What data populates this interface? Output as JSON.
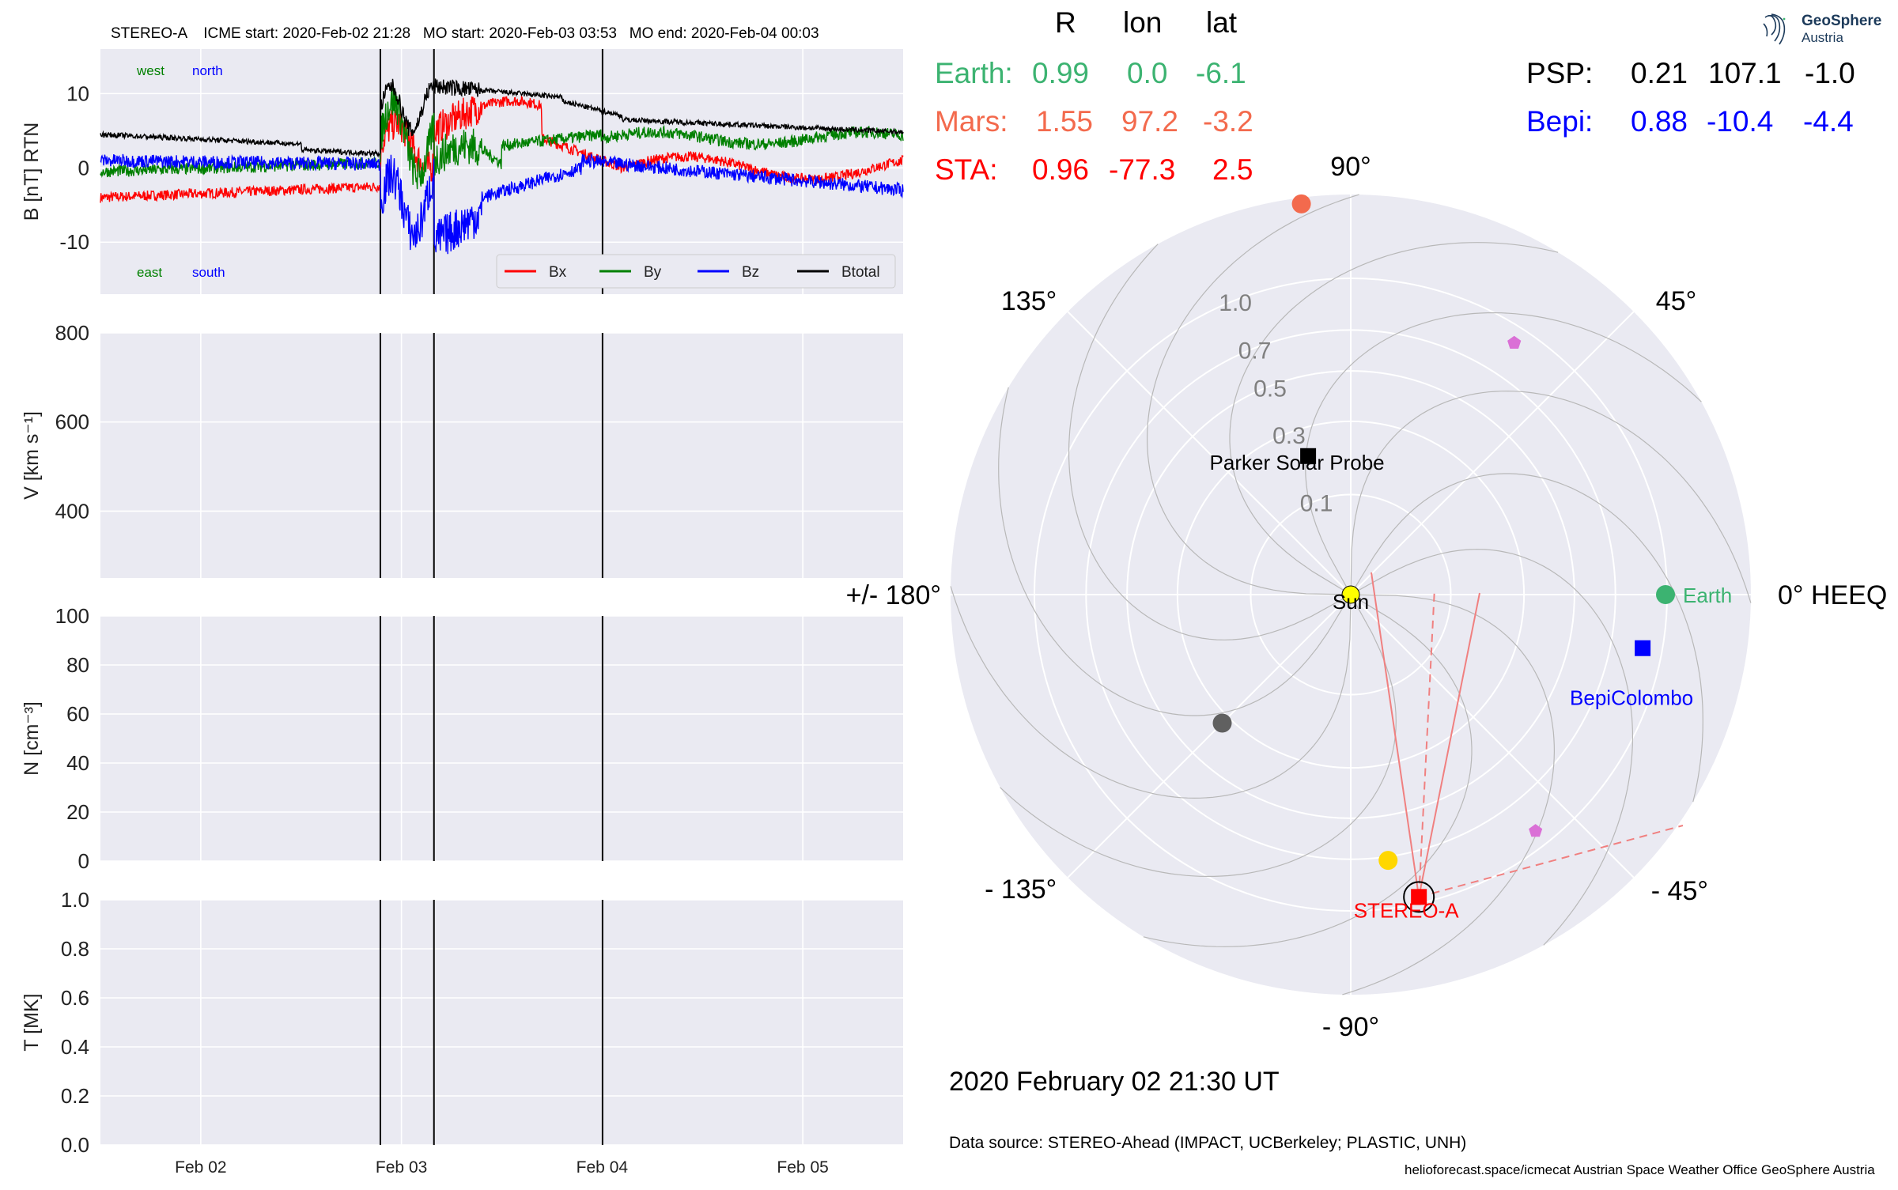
{
  "header": {
    "event_line": "STEREO-A    ICME start: 2020-Feb-02 21:28   MO start: 2020-Feb-03 03:53   MO end: 2020-Feb-04 00:03"
  },
  "positions": {
    "col_headers": [
      "R",
      "lon",
      "lat"
    ],
    "rows_left": [
      {
        "label": "Earth:",
        "R": "0.99",
        "lon": "0.0",
        "lat": "-6.1",
        "color": "#3cb371"
      },
      {
        "label": "Mars:",
        "R": "1.55",
        "lon": "97.2",
        "lat": "-3.2",
        "color": "#f36a4d"
      },
      {
        "label": "STA:",
        "R": "0.96",
        "lon": "-77.3",
        "lat": "2.5",
        "color": "#ff0000"
      }
    ],
    "rows_right": [
      {
        "label": "PSP:",
        "R": "0.21",
        "lon": "107.1",
        "lat": "-1.0",
        "color": "#000000"
      },
      {
        "label": "Bepi:",
        "R": "0.88",
        "lon": "-10.4",
        "lat": "-4.4",
        "color": "#0000ff"
      }
    ]
  },
  "chart_data": [
    {
      "type": "line",
      "panel": "magnetic field",
      "ylabel": "B [nT] RTN",
      "ylim": [
        -17,
        16
      ],
      "yticks": [
        -10,
        0,
        10
      ],
      "xlim_days": [
        "2020-02-01 12:00",
        "2020-02-05 12:00"
      ],
      "xticks": [
        "Feb 02",
        "Feb 03",
        "Feb 04",
        "Feb 05"
      ],
      "annotations": {
        "top_left": [
          "west",
          "north"
        ],
        "bottom_left": [
          "east",
          "south"
        ]
      },
      "legend": {
        "position": "bottom-right",
        "entries": [
          "Bx",
          "By",
          "Bz",
          "Btotal"
        ]
      },
      "series": [
        {
          "name": "Bx",
          "color": "#ff0000"
        },
        {
          "name": "By",
          "color": "#008000"
        },
        {
          "name": "Bz",
          "color": "#0000ff"
        },
        {
          "name": "Btotal",
          "color": "#000000"
        }
      ],
      "vertical_lines": [
        "2020-02-02 21:28",
        "2020-02-03 03:53",
        "2020-02-04 00:03"
      ],
      "grid": true
    },
    {
      "type": "line",
      "panel": "speed",
      "ylabel": "V [km s⁻¹]",
      "ylim": [
        250,
        800
      ],
      "yticks": [
        400,
        600,
        800
      ],
      "series": [],
      "grid": true
    },
    {
      "type": "line",
      "panel": "density",
      "ylabel": "N [cm⁻³]",
      "ylim": [
        0,
        100
      ],
      "yticks": [
        0,
        20,
        40,
        60,
        80,
        100
      ],
      "series": [],
      "grid": true
    },
    {
      "type": "line",
      "panel": "temperature",
      "ylabel": "T [MK]",
      "ylim": [
        0,
        1.0
      ],
      "yticks": [
        "0.0",
        "0.2",
        "0.4",
        "0.6",
        "0.8",
        "1.0"
      ],
      "series": [],
      "grid": true
    },
    {
      "type": "polar",
      "panel": "heliospheric positions",
      "angle_labels": [
        "90°",
        "45°",
        "0° HEEQ",
        "- 45°",
        "- 90°",
        "- 135°",
        "+/- 180°",
        "135°"
      ],
      "radial_labels": [
        "0.1",
        "0.3",
        "0.5",
        "0.7",
        "1.0"
      ],
      "bodies": [
        {
          "name": "Sun",
          "r": 0.0,
          "lon": 0,
          "color": "#ffff00",
          "marker": "circle",
          "label": "Sun",
          "label_color": "#000000"
        },
        {
          "name": "Earth",
          "r": 0.99,
          "lon": 0.0,
          "color": "#3cb371",
          "marker": "circle",
          "label": "Earth",
          "label_color": "#3cb371"
        },
        {
          "name": "Mars",
          "r": 1.55,
          "lon": 97.2,
          "color": "#f36a4d",
          "marker": "circle",
          "label": "",
          "label_color": "#f36a4d"
        },
        {
          "name": "STEREO-A",
          "r": 0.96,
          "lon": -77.3,
          "color": "#ff0000",
          "marker": "square",
          "label": "STEREO-A",
          "label_color": "#ff0000"
        },
        {
          "name": "Parker Solar Probe",
          "r": 0.21,
          "lon": 107.1,
          "color": "#000000",
          "marker": "square",
          "label": "Parker Solar Probe",
          "label_color": "#000000"
        },
        {
          "name": "BepiColombo",
          "r": 0.88,
          "lon": -10.4,
          "color": "#0000ff",
          "marker": "square",
          "label": "BepiColombo",
          "label_color": "#0000ff"
        },
        {
          "name": "Venus",
          "r": 0.72,
          "lon": -82,
          "color": "#ffd700",
          "marker": "circle",
          "label": "",
          "label_color": "#000000"
        },
        {
          "name": "Mercury",
          "r": 0.33,
          "lon": -135,
          "color": "#606060",
          "marker": "circle",
          "label": "",
          "label_color": "#000000"
        }
      ],
      "pentagons": [
        {
          "r": 0.9,
          "lon": 57,
          "color": "#da70d6"
        },
        {
          "r": 0.9,
          "lon": -52,
          "color": "#da70d6"
        }
      ]
    }
  ],
  "footer": {
    "timestamp": "2020 February 02  21:30 UT",
    "data_source": "Data source: STEREO-Ahead (IMPACT, UCBerkeley; PLASTIC, UNH)",
    "credits": "helioforecast.space/icmecat   Austrian Space Weather Office   GeoSphere Austria"
  },
  "logo": {
    "line1": "GeoSphere",
    "line2": "Austria",
    "color": "#1c3a5a"
  }
}
